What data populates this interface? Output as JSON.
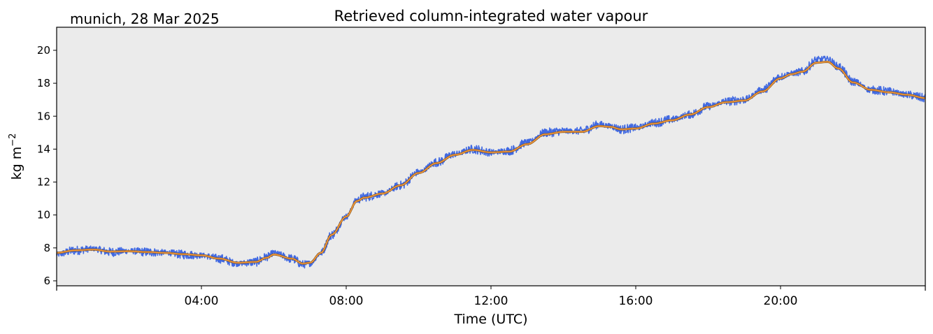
{
  "chart_data": {
    "type": "line",
    "location_date": "munich, 28 Mar 2025",
    "title": "Retrieved column-integrated water vapour",
    "xlabel": "Time (UTC)",
    "ylabel": "kg m",
    "ylabel_superscript": "−2",
    "xlim": [
      0,
      24
    ],
    "ylim": [
      5.7,
      21.4
    ],
    "yticks": [
      6,
      8,
      10,
      12,
      14,
      16,
      18,
      20
    ],
    "xticks": [
      {
        "value": 4,
        "label": "04:00"
      },
      {
        "value": 8,
        "label": "08:00"
      },
      {
        "value": 12,
        "label": "12:00"
      },
      {
        "value": 16,
        "label": "16:00"
      },
      {
        "value": 20,
        "label": "20:00"
      }
    ],
    "x_minor_ticks": [
      0,
      24
    ],
    "grid": false,
    "background_color": "#ebebeb",
    "series": [
      {
        "kind": "raw",
        "color": "#4169e1",
        "x": [
          0.0,
          0.5,
          1.0,
          1.5,
          2.0,
          2.5,
          3.0,
          3.5,
          4.0,
          4.5,
          5.0,
          5.5,
          5.8,
          6.0,
          6.5,
          6.8,
          7.0,
          7.3,
          7.6,
          8.0,
          8.3,
          8.5,
          9.0,
          9.5,
          10.0,
          10.5,
          11.0,
          11.5,
          12.0,
          12.5,
          13.0,
          13.5,
          14.0,
          14.5,
          15.0,
          15.3,
          15.6,
          16.0,
          16.5,
          17.0,
          17.5,
          18.0,
          18.5,
          19.0,
          19.5,
          20.0,
          20.3,
          20.6,
          21.0,
          21.3,
          21.6,
          22.0,
          22.5,
          23.0,
          23.5,
          24.0
        ],
        "y": [
          7.6,
          7.85,
          7.95,
          7.75,
          7.82,
          7.75,
          7.72,
          7.6,
          7.55,
          7.35,
          7.05,
          7.15,
          7.45,
          7.7,
          7.35,
          7.0,
          7.05,
          7.7,
          8.8,
          9.9,
          10.9,
          11.1,
          11.3,
          11.8,
          12.6,
          13.2,
          13.7,
          14.0,
          13.8,
          13.9,
          14.4,
          15.0,
          15.1,
          15.1,
          15.5,
          15.4,
          15.2,
          15.3,
          15.6,
          15.8,
          16.1,
          16.6,
          16.9,
          17.0,
          17.6,
          18.4,
          18.6,
          18.7,
          19.4,
          19.5,
          19.0,
          18.1,
          17.6,
          17.5,
          17.3,
          17.1
        ],
        "spread": 0.28
      },
      {
        "kind": "smoothed",
        "color": "#ffa040",
        "outline_color": "#8c5a1e",
        "x": [
          0.0,
          0.5,
          1.0,
          1.5,
          2.0,
          2.5,
          3.0,
          3.5,
          4.0,
          4.5,
          5.0,
          5.5,
          5.8,
          6.0,
          6.5,
          6.8,
          7.0,
          7.3,
          7.6,
          8.0,
          8.3,
          8.5,
          9.0,
          9.5,
          10.0,
          10.5,
          11.0,
          11.5,
          12.0,
          12.5,
          13.0,
          13.5,
          14.0,
          14.5,
          15.0,
          15.3,
          15.6,
          16.0,
          16.5,
          17.0,
          17.5,
          18.0,
          18.5,
          19.0,
          19.5,
          20.0,
          20.3,
          20.6,
          21.0,
          21.3,
          21.6,
          22.0,
          22.5,
          23.0,
          23.5,
          24.0
        ],
        "y": [
          7.7,
          7.85,
          7.9,
          7.78,
          7.8,
          7.75,
          7.7,
          7.62,
          7.55,
          7.35,
          7.1,
          7.15,
          7.4,
          7.6,
          7.35,
          7.05,
          7.1,
          7.7,
          8.8,
          9.9,
          10.85,
          11.05,
          11.3,
          11.8,
          12.55,
          13.15,
          13.65,
          13.95,
          13.8,
          13.85,
          14.3,
          14.9,
          15.05,
          15.05,
          15.4,
          15.35,
          15.2,
          15.25,
          15.55,
          15.75,
          16.1,
          16.55,
          16.85,
          16.95,
          17.5,
          18.3,
          18.55,
          18.7,
          19.25,
          19.3,
          18.9,
          18.05,
          17.6,
          17.45,
          17.3,
          17.1
        ]
      }
    ]
  }
}
